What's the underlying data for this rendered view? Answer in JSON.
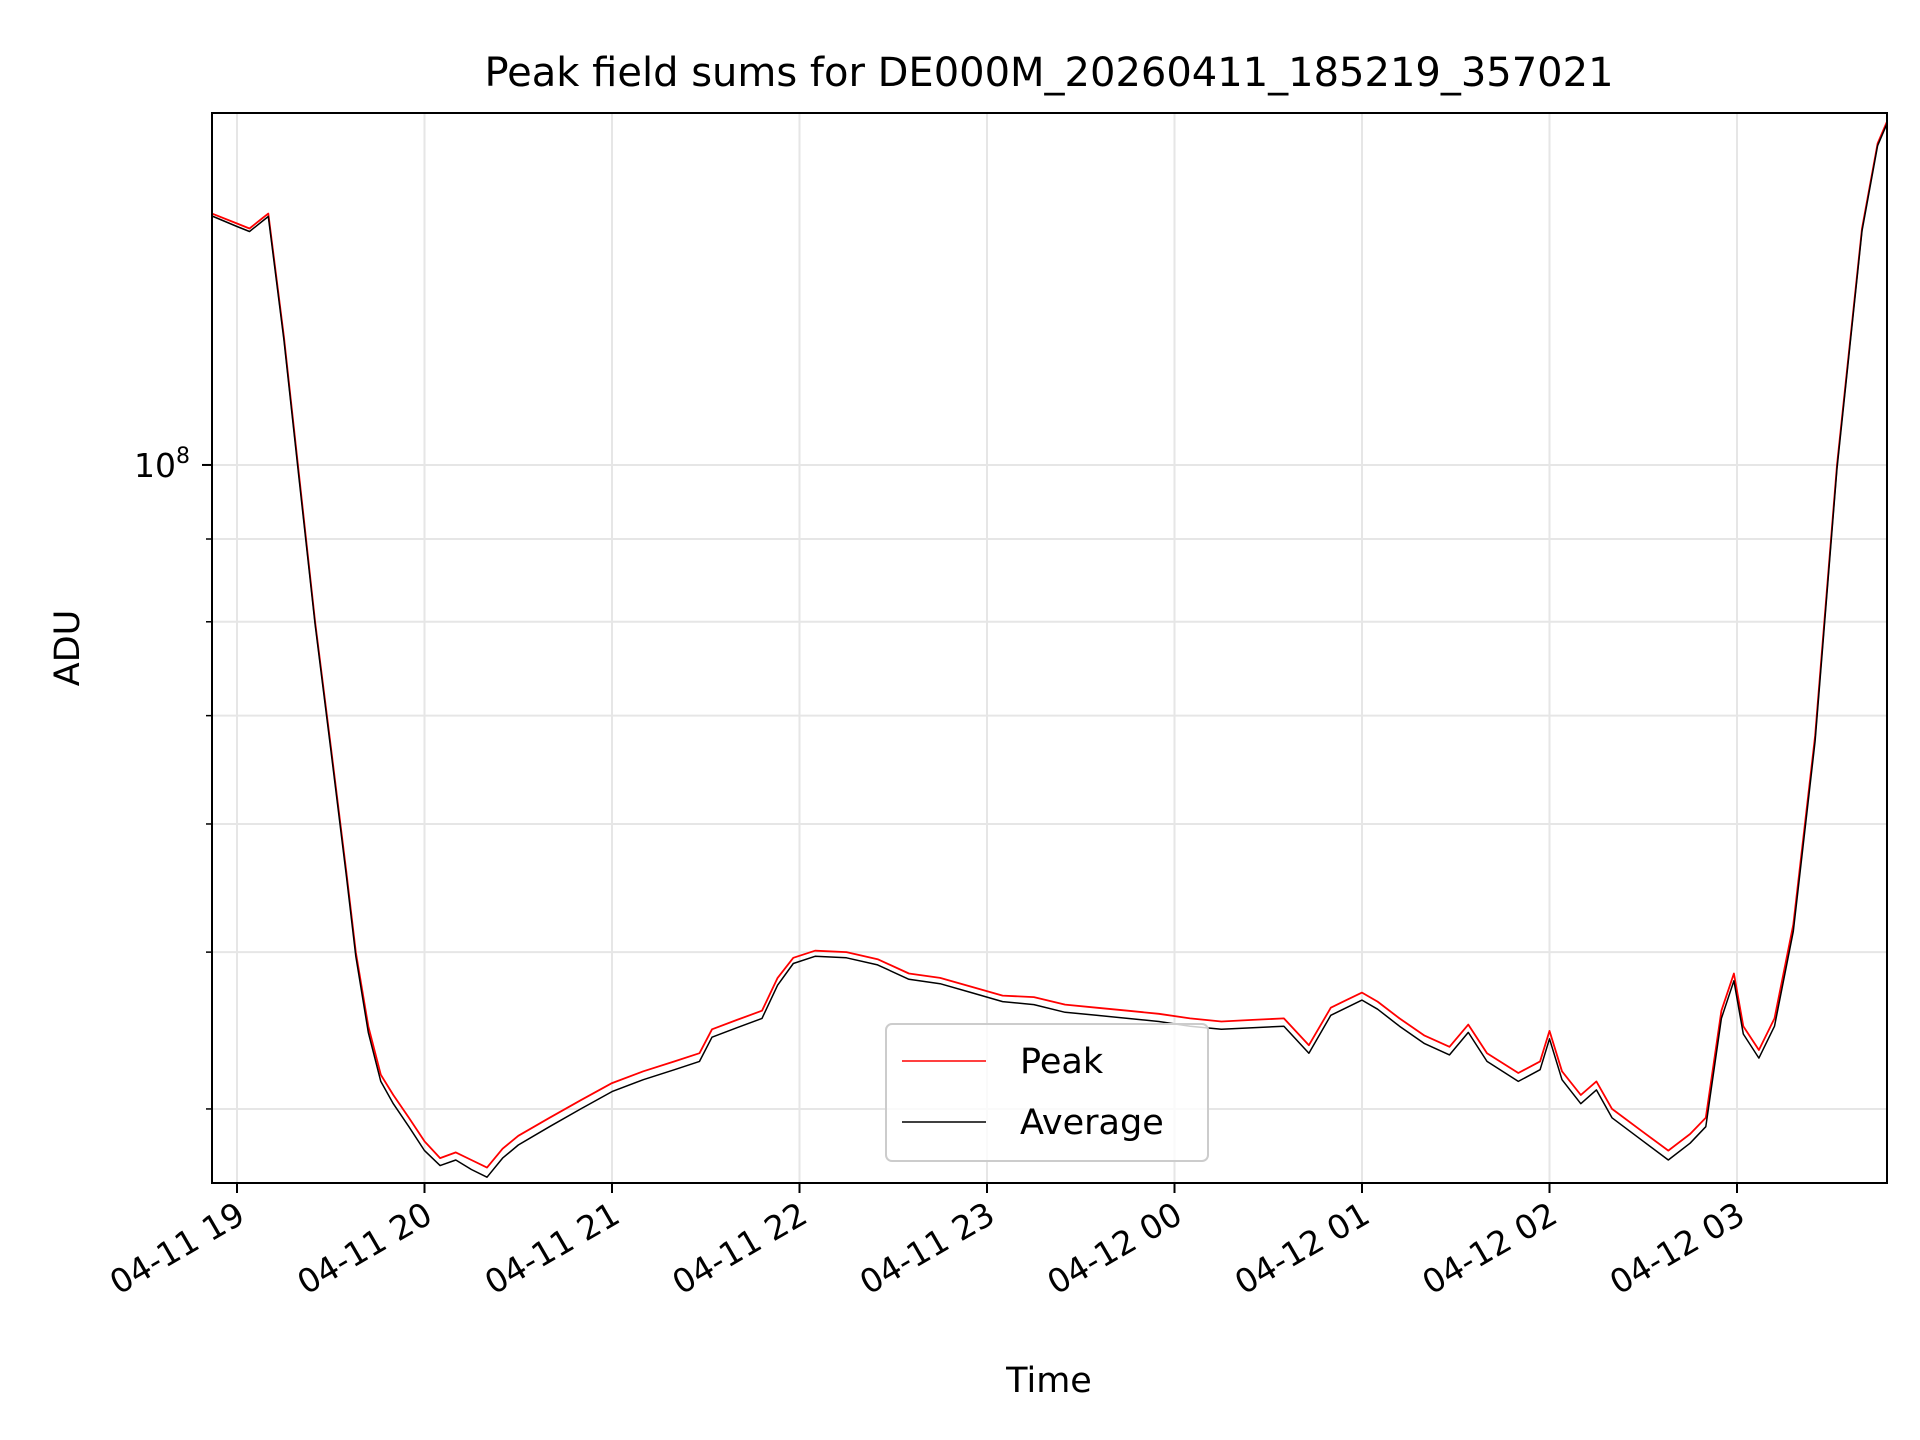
{
  "chart_data": {
    "type": "line",
    "title": "Peak field sums for DE000M_20260411_185219_357021",
    "xlabel": "Time",
    "ylabel": "ADU",
    "y_scale": "log",
    "xlim": [
      "2026-04-11 18:52",
      "2026-04-12 03:48"
    ],
    "ylim": [
      36000000,
      165000000
    ],
    "grid": true,
    "legend_position": "lower-center",
    "x_ticks": [
      {
        "at": "2026-04-11 19:00",
        "label": "04-11 19"
      },
      {
        "at": "2026-04-11 20:00",
        "label": "04-11 20"
      },
      {
        "at": "2026-04-11 21:00",
        "label": "04-11 21"
      },
      {
        "at": "2026-04-11 22:00",
        "label": "04-11 22"
      },
      {
        "at": "2026-04-11 23:00",
        "label": "04-11 23"
      },
      {
        "at": "2026-04-12 00:00",
        "label": "04-12 00"
      },
      {
        "at": "2026-04-12 01:00",
        "label": "04-12 01"
      },
      {
        "at": "2026-04-12 02:00",
        "label": "04-12 02"
      },
      {
        "at": "2026-04-12 03:00",
        "label": "04-12 03"
      }
    ],
    "y_ticks": [
      {
        "value": 100000000,
        "base": "10",
        "exp": "8"
      }
    ],
    "y_minor_ticks": [
      40000000,
      50000000,
      60000000,
      70000000,
      80000000,
      90000000,
      200000000
    ],
    "series": [
      {
        "name": "Peak",
        "color": "#ff0000",
        "points": [
          [
            "2026-04-11 18:52",
            143000000
          ],
          [
            "2026-04-11 19:00",
            141000000
          ],
          [
            "2026-04-11 19:04",
            140000000
          ],
          [
            "2026-04-11 19:08",
            142000000
          ],
          [
            "2026-04-11 19:10",
            143000000
          ],
          [
            "2026-04-11 19:15",
            120000000
          ],
          [
            "2026-04-11 19:20",
            98000000
          ],
          [
            "2026-04-11 19:25",
            80000000
          ],
          [
            "2026-04-11 19:30",
            67000000
          ],
          [
            "2026-04-11 19:35",
            56000000
          ],
          [
            "2026-04-11 19:38",
            50000000
          ],
          [
            "2026-04-11 19:42",
            45000000
          ],
          [
            "2026-04-11 19:46",
            42000000
          ],
          [
            "2026-04-11 19:50",
            40800000
          ],
          [
            "2026-04-11 19:55",
            39500000
          ],
          [
            "2026-04-11 20:00",
            38200000
          ],
          [
            "2026-04-11 20:05",
            37300000
          ],
          [
            "2026-04-11 20:10",
            37600000
          ],
          [
            "2026-04-11 20:15",
            37200000
          ],
          [
            "2026-04-11 20:20",
            36800000
          ],
          [
            "2026-04-11 20:25",
            37800000
          ],
          [
            "2026-04-11 20:30",
            38500000
          ],
          [
            "2026-04-11 20:40",
            39500000
          ],
          [
            "2026-04-11 20:50",
            40500000
          ],
          [
            "2026-04-11 21:00",
            41500000
          ],
          [
            "2026-04-11 21:10",
            42200000
          ],
          [
            "2026-04-11 21:20",
            42800000
          ],
          [
            "2026-04-11 21:28",
            43300000
          ],
          [
            "2026-04-11 21:32",
            44800000
          ],
          [
            "2026-04-11 21:40",
            45400000
          ],
          [
            "2026-04-11 21:48",
            46000000
          ],
          [
            "2026-04-11 21:53",
            48200000
          ],
          [
            "2026-04-11 21:58",
            49600000
          ],
          [
            "2026-04-11 22:05",
            50100000
          ],
          [
            "2026-04-11 22:15",
            50000000
          ],
          [
            "2026-04-11 22:25",
            49500000
          ],
          [
            "2026-04-11 22:35",
            48500000
          ],
          [
            "2026-04-11 22:45",
            48200000
          ],
          [
            "2026-04-11 22:55",
            47600000
          ],
          [
            "2026-04-11 23:05",
            47000000
          ],
          [
            "2026-04-11 23:15",
            46900000
          ],
          [
            "2026-04-11 23:25",
            46400000
          ],
          [
            "2026-04-11 23:35",
            46200000
          ],
          [
            "2026-04-11 23:45",
            46000000
          ],
          [
            "2026-04-11 23:55",
            45800000
          ],
          [
            "2026-04-12 00:05",
            45500000
          ],
          [
            "2026-04-12 00:15",
            45300000
          ],
          [
            "2026-04-12 00:25",
            45400000
          ],
          [
            "2026-04-12 00:35",
            45500000
          ],
          [
            "2026-04-12 00:43",
            43800000
          ],
          [
            "2026-04-12 00:50",
            46200000
          ],
          [
            "2026-04-12 00:55",
            46700000
          ],
          [
            "2026-04-12 01:00",
            47200000
          ],
          [
            "2026-04-12 01:05",
            46600000
          ],
          [
            "2026-04-12 01:12",
            45500000
          ],
          [
            "2026-04-12 01:20",
            44400000
          ],
          [
            "2026-04-12 01:28",
            43700000
          ],
          [
            "2026-04-12 01:34",
            45100000
          ],
          [
            "2026-04-12 01:40",
            43300000
          ],
          [
            "2026-04-12 01:50",
            42100000
          ],
          [
            "2026-04-12 01:57",
            42800000
          ],
          [
            "2026-04-12 02:00",
            44700000
          ],
          [
            "2026-04-12 02:04",
            42200000
          ],
          [
            "2026-04-12 02:10",
            40800000
          ],
          [
            "2026-04-12 02:15",
            41600000
          ],
          [
            "2026-04-12 02:20",
            40000000
          ],
          [
            "2026-04-12 02:30",
            38700000
          ],
          [
            "2026-04-12 02:38",
            37700000
          ],
          [
            "2026-04-12 02:45",
            38600000
          ],
          [
            "2026-04-12 02:50",
            39500000
          ],
          [
            "2026-04-12 02:55",
            46000000
          ],
          [
            "2026-04-12 02:59",
            48500000
          ],
          [
            "2026-04-12 03:02",
            45000000
          ],
          [
            "2026-04-12 03:07",
            43500000
          ],
          [
            "2026-04-12 03:12",
            45500000
          ],
          [
            "2026-04-12 03:18",
            52000000
          ],
          [
            "2026-04-12 03:25",
            68000000
          ],
          [
            "2026-04-12 03:32",
            100000000
          ],
          [
            "2026-04-12 03:40",
            140000000
          ],
          [
            "2026-04-12 03:45",
            158000000
          ],
          [
            "2026-04-12 03:48",
            163000000
          ]
        ]
      },
      {
        "name": "Average",
        "color": "#000000",
        "points": [
          [
            "2026-04-11 18:52",
            142500000
          ],
          [
            "2026-04-11 19:00",
            140400000
          ],
          [
            "2026-04-11 19:04",
            139400000
          ],
          [
            "2026-04-11 19:08",
            141400000
          ],
          [
            "2026-04-11 19:10",
            142400000
          ],
          [
            "2026-04-11 19:15",
            119500000
          ],
          [
            "2026-04-11 19:20",
            97500000
          ],
          [
            "2026-04-11 19:25",
            79700000
          ],
          [
            "2026-04-11 19:30",
            66700000
          ],
          [
            "2026-04-11 19:35",
            55700000
          ],
          [
            "2026-04-11 19:38",
            49700000
          ],
          [
            "2026-04-11 19:42",
            44600000
          ],
          [
            "2026-04-11 19:46",
            41600000
          ],
          [
            "2026-04-11 19:50",
            40300000
          ],
          [
            "2026-04-11 19:55",
            39000000
          ],
          [
            "2026-04-11 20:00",
            37700000
          ],
          [
            "2026-04-11 20:05",
            36900000
          ],
          [
            "2026-04-11 20:10",
            37200000
          ],
          [
            "2026-04-11 20:15",
            36700000
          ],
          [
            "2026-04-11 20:20",
            36300000
          ],
          [
            "2026-04-11 20:25",
            37300000
          ],
          [
            "2026-04-11 20:30",
            38000000
          ],
          [
            "2026-04-11 20:40",
            39000000
          ],
          [
            "2026-04-11 20:50",
            40000000
          ],
          [
            "2026-04-11 21:00",
            41000000
          ],
          [
            "2026-04-11 21:10",
            41700000
          ],
          [
            "2026-04-11 21:20",
            42300000
          ],
          [
            "2026-04-11 21:28",
            42800000
          ],
          [
            "2026-04-11 21:32",
            44300000
          ],
          [
            "2026-04-11 21:40",
            44900000
          ],
          [
            "2026-04-11 21:48",
            45500000
          ],
          [
            "2026-04-11 21:53",
            47700000
          ],
          [
            "2026-04-11 21:58",
            49200000
          ],
          [
            "2026-04-11 22:05",
            49700000
          ],
          [
            "2026-04-11 22:15",
            49600000
          ],
          [
            "2026-04-11 22:25",
            49100000
          ],
          [
            "2026-04-11 22:35",
            48100000
          ],
          [
            "2026-04-11 22:45",
            47800000
          ],
          [
            "2026-04-11 22:55",
            47200000
          ],
          [
            "2026-04-11 23:05",
            46600000
          ],
          [
            "2026-04-11 23:15",
            46400000
          ],
          [
            "2026-04-11 23:25",
            45900000
          ],
          [
            "2026-04-11 23:35",
            45700000
          ],
          [
            "2026-04-11 23:45",
            45500000
          ],
          [
            "2026-04-11 23:55",
            45300000
          ],
          [
            "2026-04-12 00:05",
            45000000
          ],
          [
            "2026-04-12 00:15",
            44800000
          ],
          [
            "2026-04-12 00:25",
            44900000
          ],
          [
            "2026-04-12 00:35",
            45000000
          ],
          [
            "2026-04-12 00:43",
            43300000
          ],
          [
            "2026-04-12 00:50",
            45700000
          ],
          [
            "2026-04-12 00:55",
            46200000
          ],
          [
            "2026-04-12 01:00",
            46700000
          ],
          [
            "2026-04-12 01:05",
            46100000
          ],
          [
            "2026-04-12 01:12",
            45000000
          ],
          [
            "2026-04-12 01:20",
            43900000
          ],
          [
            "2026-04-12 01:28",
            43200000
          ],
          [
            "2026-04-12 01:34",
            44600000
          ],
          [
            "2026-04-12 01:40",
            42800000
          ],
          [
            "2026-04-12 01:50",
            41600000
          ],
          [
            "2026-04-12 01:57",
            42300000
          ],
          [
            "2026-04-12 02:00",
            44200000
          ],
          [
            "2026-04-12 02:04",
            41700000
          ],
          [
            "2026-04-12 02:10",
            40300000
          ],
          [
            "2026-04-12 02:15",
            41100000
          ],
          [
            "2026-04-12 02:20",
            39500000
          ],
          [
            "2026-04-12 02:30",
            38200000
          ],
          [
            "2026-04-12 02:38",
            37200000
          ],
          [
            "2026-04-12 02:45",
            38100000
          ],
          [
            "2026-04-12 02:50",
            39000000
          ],
          [
            "2026-04-12 02:55",
            45500000
          ],
          [
            "2026-04-12 02:59",
            48000000
          ],
          [
            "2026-04-12 03:02",
            44500000
          ],
          [
            "2026-04-12 03:07",
            43000000
          ],
          [
            "2026-04-12 03:12",
            45000000
          ],
          [
            "2026-04-12 03:18",
            51500000
          ],
          [
            "2026-04-12 03:25",
            67500000
          ],
          [
            "2026-04-12 03:32",
            99500000
          ],
          [
            "2026-04-12 03:40",
            139500000
          ],
          [
            "2026-04-12 03:45",
            157500000
          ],
          [
            "2026-04-12 03:48",
            162500000
          ]
        ]
      }
    ]
  }
}
